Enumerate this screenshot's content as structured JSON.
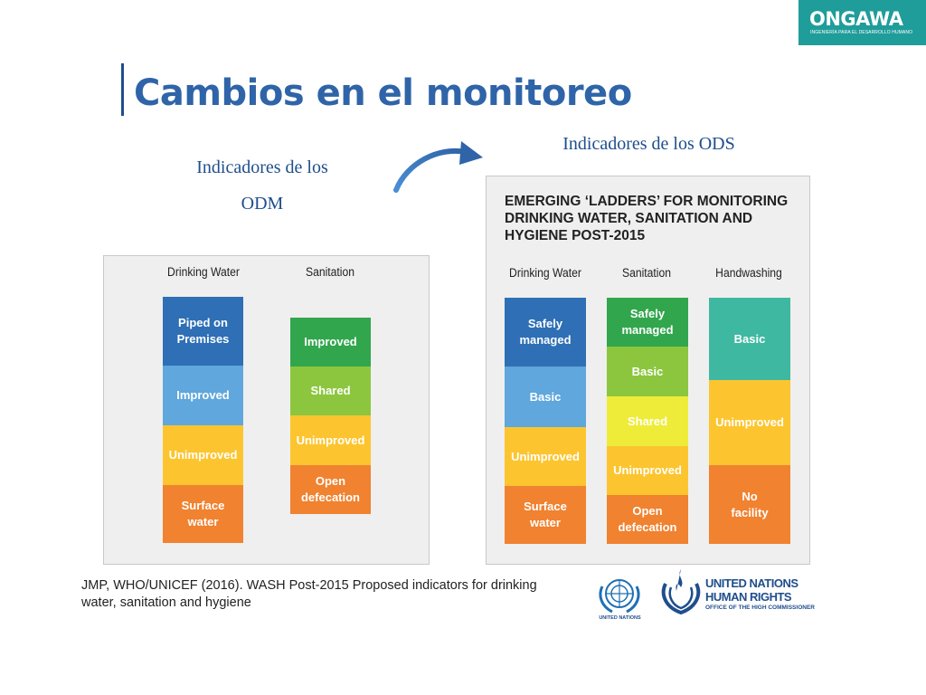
{
  "logo": {
    "name": "ONGAWA",
    "tagline": "INGENIERÍA PARA EL DESARROLLO HUMANO"
  },
  "title": "Cambios en el monitoreo",
  "labels": {
    "odm_line1": "Indicadores de los",
    "odm_line2": "ODM",
    "ods": "Indicadores de los ODS"
  },
  "left_panel": {
    "columns": [
      {
        "header": "Drinking Water",
        "segments": [
          {
            "label": "Piped on\nPremises",
            "color": "#2e6fb5"
          },
          {
            "label": "Improved",
            "color": "#5fa7dc"
          },
          {
            "label": "Unimproved",
            "color": "#fcc52f"
          },
          {
            "label": "Surface\nwater",
            "color": "#f08230"
          }
        ]
      },
      {
        "header": "Sanitation",
        "segments": [
          {
            "label": "Improved",
            "color": "#31a64d"
          },
          {
            "label": "Shared",
            "color": "#8cc63f"
          },
          {
            "label": "Unimproved",
            "color": "#fcc52f"
          },
          {
            "label": "Open\ndefecation",
            "color": "#f08230"
          }
        ]
      }
    ]
  },
  "right_panel": {
    "heading": "EMERGING ‘LADDERS’ FOR MONITORING DRINKING WATER, SANITATION AND HYGIENE POST-2015",
    "columns": [
      {
        "header": "Drinking Water",
        "segments": [
          {
            "label": "Safely\nmanaged",
            "color": "#2e6fb5"
          },
          {
            "label": "Basic",
            "color": "#5fa7dc"
          },
          {
            "label": "Unimproved",
            "color": "#fcc52f"
          },
          {
            "label": "Surface\nwater",
            "color": "#f08230"
          }
        ]
      },
      {
        "header": "Sanitation",
        "segments": [
          {
            "label": "Safely\nmanaged",
            "color": "#31a64d"
          },
          {
            "label": "Basic",
            "color": "#8cc63f"
          },
          {
            "label": "Shared",
            "color": "#eeec39"
          },
          {
            "label": "Unimproved",
            "color": "#fcc52f"
          },
          {
            "label": "Open\ndefecation",
            "color": "#f08230"
          }
        ]
      },
      {
        "header": "Handwashing",
        "segments": [
          {
            "label": "Basic",
            "color": "#3fb8a2"
          },
          {
            "label": "Unimproved",
            "color": "#fcc52f"
          },
          {
            "label": "No\nfacility",
            "color": "#f08230"
          }
        ]
      }
    ]
  },
  "citation": "JMP, WHO/UNICEF (2016). WASH Post-2015 Proposed indicators for drinking water, sanitation and hygiene",
  "footer_logos": {
    "un_caption": "UNITED NATIONS",
    "ohchr_line1": "UNITED NATIONS",
    "ohchr_line2": "HUMAN RIGHTS",
    "ohchr_line3": "OFFICE OF THE HIGH COMMISSIONER"
  }
}
